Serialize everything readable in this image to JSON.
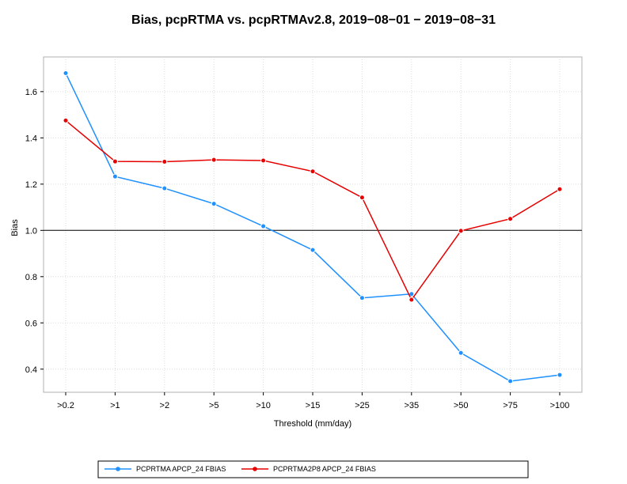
{
  "chart_data": {
    "type": "line",
    "title": "Bias, pcpRTMA vs. pcpRTMAv2.8, 2019−08−01 − 2019−08−31",
    "xlabel": "Threshold (mm/day)",
    "ylabel": "Bias",
    "categories": [
      ">0.2",
      ">1",
      ">2",
      ">5",
      ">10",
      ">15",
      ">25",
      ">35",
      ">50",
      ">75",
      ">100"
    ],
    "ylim": [
      0.3,
      1.75
    ],
    "yticks": [
      0.4,
      0.6,
      0.8,
      1.0,
      1.2,
      1.4,
      1.6
    ],
    "ytick_labels": [
      "0.4",
      "0.6",
      "0.8",
      "1.0",
      "1.2",
      "1.4",
      "1.6"
    ],
    "reference_line": 1.0,
    "grid": true,
    "legend_position": "bottom",
    "series": [
      {
        "name": "PCPRTMA APCP_24 FBIAS",
        "color": "#1e90ff",
        "values": [
          1.68,
          1.233,
          1.182,
          1.115,
          1.018,
          0.915,
          0.708,
          0.725,
          0.47,
          0.348,
          0.375
        ]
      },
      {
        "name": "PCPRTMA2P8 APCP_24 FBIAS",
        "color": "#e60000",
        "values": [
          1.475,
          1.298,
          1.297,
          1.305,
          1.302,
          1.255,
          1.142,
          0.7,
          0.998,
          1.05,
          1.178
        ]
      }
    ]
  }
}
